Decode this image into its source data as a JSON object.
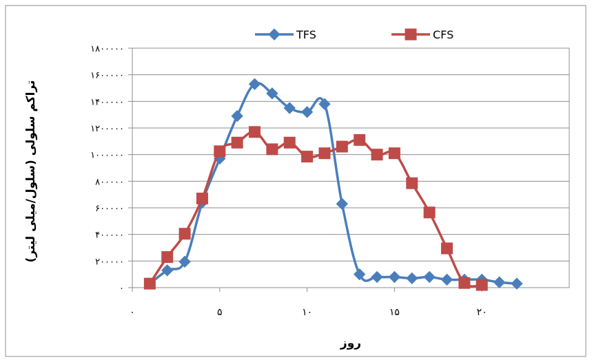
{
  "chart_data": {
    "type": "line",
    "xlabel": "روز",
    "ylabel": "تراکم سلولی (سلول/میلی لیتر)",
    "xlim": [
      0,
      25
    ],
    "ylim": [
      0,
      1800000
    ],
    "x_ticks": [
      {
        "value": 0,
        "label": "۰"
      },
      {
        "value": 5,
        "label": "۵"
      },
      {
        "value": 10,
        "label": "۱۰"
      },
      {
        "value": 15,
        "label": "۱۵"
      },
      {
        "value": 20,
        "label": "۲۰"
      }
    ],
    "y_ticks": [
      {
        "value": 0,
        "label": "۰"
      },
      {
        "value": 200000,
        "label": "۲۰۰۰۰۰"
      },
      {
        "value": 400000,
        "label": "۴۰۰۰۰۰"
      },
      {
        "value": 600000,
        "label": "۶۰۰۰۰۰"
      },
      {
        "value": 800000,
        "label": "۸۰۰۰۰۰"
      },
      {
        "value": 1000000,
        "label": "۱۰۰۰۰۰۰"
      },
      {
        "value": 1200000,
        "label": "۱۲۰۰۰۰۰"
      },
      {
        "value": 1400000,
        "label": "۱۴۰۰۰۰۰"
      },
      {
        "value": 1600000,
        "label": "۱۶۰۰۰۰۰"
      },
      {
        "value": 1800000,
        "label": "۱۸۰۰۰۰۰"
      }
    ],
    "grid": true,
    "legend_position": "top",
    "series": [
      {
        "name": "TFS",
        "color": "#4a7ebb",
        "marker": "diamond",
        "x": [
          1,
          2,
          3,
          4,
          5,
          6,
          7,
          8,
          9,
          10,
          11,
          12,
          13,
          14,
          15,
          16,
          17,
          18,
          19,
          20,
          21,
          22
        ],
        "values": [
          30000,
          130000,
          195000,
          640000,
          970000,
          1290000,
          1530000,
          1460000,
          1350000,
          1320000,
          1380000,
          630000,
          100000,
          80000,
          80000,
          70000,
          80000,
          60000,
          60000,
          60000,
          40000,
          30000
        ]
      },
      {
        "name": "CFS",
        "color": "#be4b48",
        "marker": "square",
        "x": [
          1,
          2,
          3,
          4,
          5,
          6,
          7,
          8,
          9,
          10,
          11,
          12,
          13,
          14,
          15,
          16,
          17,
          18,
          19,
          20
        ],
        "values": [
          30000,
          230000,
          405000,
          670000,
          1025000,
          1090000,
          1170000,
          1040000,
          1090000,
          985000,
          1010000,
          1060000,
          1110000,
          1000000,
          1010000,
          785000,
          565000,
          295000,
          35000,
          20000
        ]
      }
    ]
  }
}
